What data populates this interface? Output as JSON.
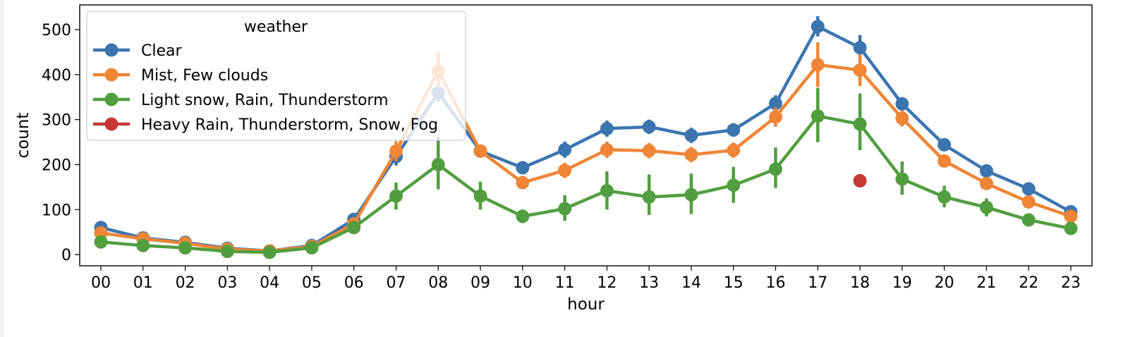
{
  "chart_data": {
    "type": "line",
    "title": "",
    "xlabel": "hour",
    "ylabel": "count",
    "ylim": [
      -25,
      555
    ],
    "yticks": [
      0,
      100,
      200,
      300,
      400,
      500
    ],
    "categories": [
      "00",
      "01",
      "02",
      "03",
      "04",
      "05",
      "06",
      "07",
      "08",
      "09",
      "10",
      "11",
      "12",
      "13",
      "14",
      "15",
      "16",
      "17",
      "18",
      "19",
      "20",
      "21",
      "22",
      "23"
    ],
    "legend": {
      "title": "weather",
      "placement": "top-left"
    },
    "series": [
      {
        "name": "Clear",
        "color": "#3a75af",
        "values": [
          60,
          37,
          27,
          14,
          8,
          20,
          78,
          218,
          360,
          230,
          193,
          233,
          280,
          284,
          265,
          277,
          336,
          507,
          460,
          335,
          244,
          186,
          146,
          95
        ],
        "err_low": [
          55,
          33,
          24,
          11,
          6,
          17,
          72,
          198,
          340,
          220,
          183,
          215,
          262,
          268,
          248,
          262,
          318,
          485,
          432,
          320,
          232,
          178,
          139,
          90
        ],
        "err_high": [
          65,
          41,
          30,
          17,
          10,
          23,
          84,
          238,
          380,
          240,
          203,
          251,
          298,
          300,
          282,
          292,
          354,
          530,
          488,
          350,
          256,
          194,
          153,
          100
        ]
      },
      {
        "name": "Mist, Few clouds",
        "color": "#ef8535",
        "values": [
          48,
          35,
          25,
          12,
          8,
          18,
          68,
          230,
          408,
          230,
          160,
          187,
          233,
          231,
          222,
          232,
          306,
          422,
          410,
          303,
          208,
          158,
          117,
          85
        ],
        "err_low": [
          43,
          31,
          22,
          9,
          6,
          15,
          61,
          208,
          370,
          218,
          150,
          170,
          215,
          214,
          205,
          215,
          284,
          372,
          375,
          285,
          195,
          148,
          110,
          80
        ],
        "err_high": [
          53,
          39,
          28,
          15,
          10,
          21,
          75,
          252,
          450,
          242,
          170,
          204,
          251,
          248,
          239,
          249,
          328,
          472,
          445,
          321,
          221,
          168,
          124,
          90
        ]
      },
      {
        "name": "Light snow, Rain, Thunderstorm",
        "color": "#519e3e",
        "values": [
          28,
          20,
          15,
          7,
          5,
          15,
          60,
          130,
          200,
          130,
          85,
          102,
          142,
          128,
          133,
          154,
          190,
          308,
          290,
          168,
          128,
          105,
          77,
          58
        ],
        "err_low": [
          22,
          15,
          11,
          4,
          3,
          10,
          54,
          100,
          145,
          100,
          70,
          75,
          100,
          88,
          90,
          115,
          148,
          250,
          232,
          133,
          105,
          85,
          68,
          52
        ],
        "err_high": [
          34,
          25,
          19,
          10,
          7,
          20,
          66,
          160,
          262,
          162,
          100,
          132,
          185,
          178,
          180,
          195,
          238,
          370,
          358,
          207,
          153,
          125,
          88,
          64
        ]
      },
      {
        "name": "Heavy Rain, Thunderstorm, Snow, Fog",
        "color": "#c53a32",
        "values": [
          null,
          null,
          null,
          null,
          null,
          null,
          null,
          null,
          null,
          null,
          null,
          null,
          null,
          null,
          null,
          null,
          null,
          null,
          164,
          null,
          null,
          null,
          null,
          null
        ]
      }
    ]
  }
}
